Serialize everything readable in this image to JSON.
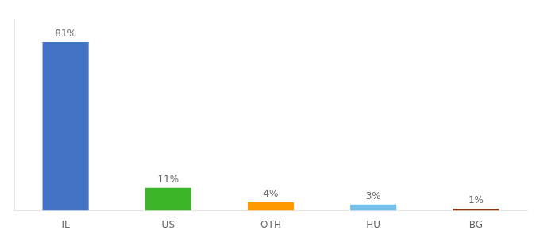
{
  "chart_data": {
    "type": "bar",
    "categories": [
      "IL",
      "US",
      "OTH",
      "HU",
      "BG"
    ],
    "values": [
      81,
      11,
      4,
      3,
      1
    ],
    "value_labels": [
      "81%",
      "11%",
      "4%",
      "3%",
      "1%"
    ],
    "colors": [
      "#4472c4",
      "#3cb528",
      "#ff9900",
      "#74c0e8",
      "#8b3510"
    ],
    "ylim": [
      0,
      92
    ],
    "data_labels": true,
    "tick_labels": "x",
    "grid": false
  }
}
